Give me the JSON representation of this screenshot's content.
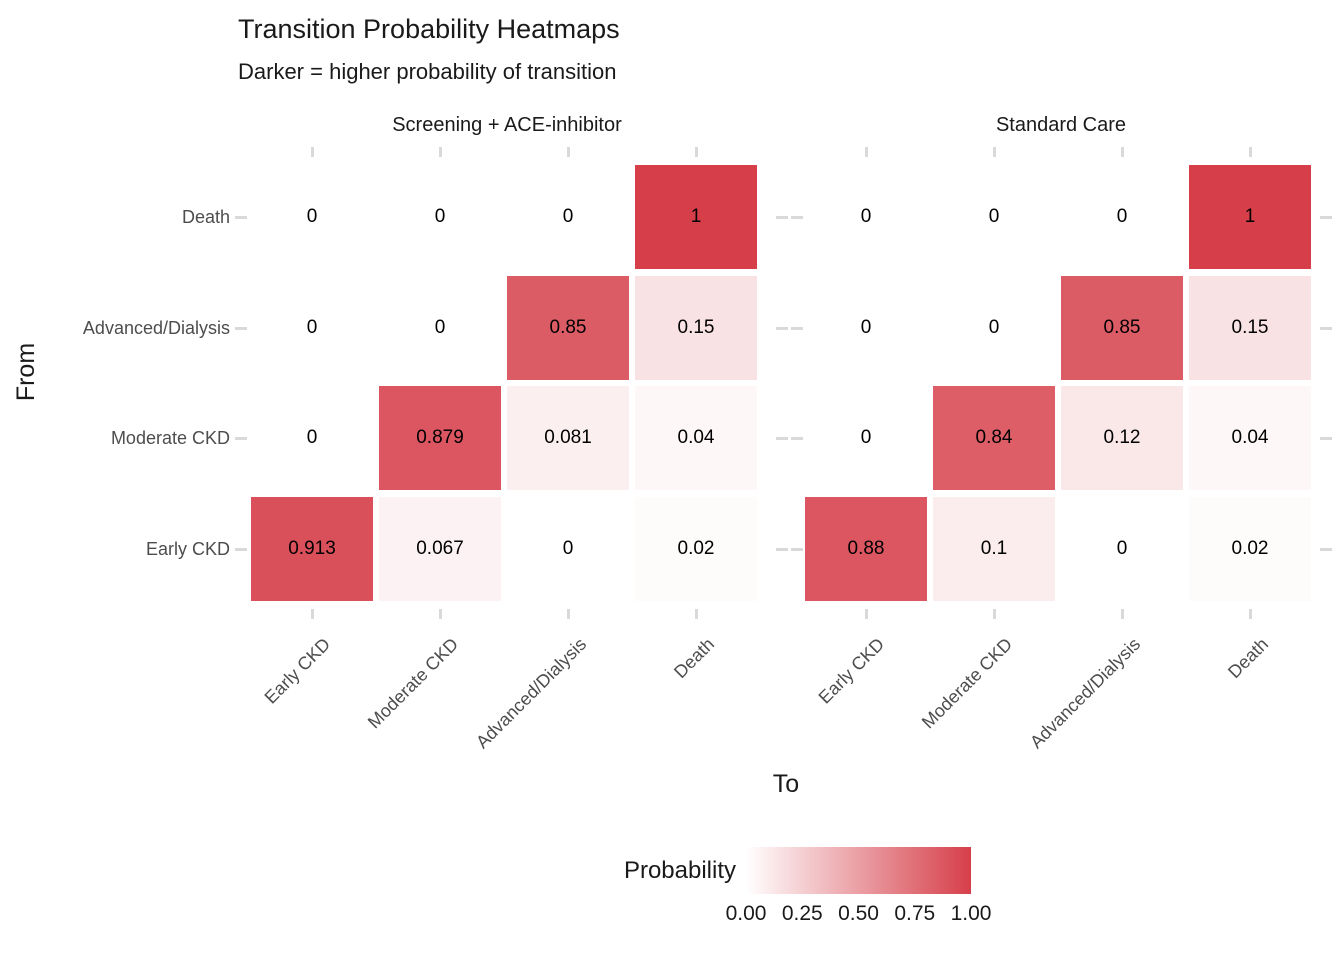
{
  "chart_data": {
    "type": "heatmap",
    "title": "Transition Probability Heatmaps",
    "subtitle": "Darker = higher probability of transition",
    "xlabel": "To",
    "ylabel": "From",
    "row_axis_labels": [
      "Death",
      "Advanced/Dialysis",
      "Moderate CKD",
      "Early CKD"
    ],
    "col_axis_labels": [
      "Early CKD",
      "Moderate CKD",
      "Advanced/Dialysis",
      "Death"
    ],
    "facets": [
      {
        "label": "Screening + ACE-inhibitor",
        "values": [
          [
            0,
            0,
            0,
            1
          ],
          [
            0,
            0,
            0.85,
            0.15
          ],
          [
            0,
            0.879,
            0.081,
            0.04
          ],
          [
            0.913,
            0.067,
            0,
            0.02
          ]
        ],
        "cell_labels": [
          [
            "0",
            "0",
            "0",
            "1"
          ],
          [
            "0",
            "0",
            "0.85",
            "0.15"
          ],
          [
            "0",
            "0.879",
            "0.081",
            "0.04"
          ],
          [
            "0.913",
            "0.067",
            "0",
            "0.02"
          ]
        ]
      },
      {
        "label": "Standard Care",
        "values": [
          [
            0,
            0,
            0,
            1
          ],
          [
            0,
            0,
            0.85,
            0.15
          ],
          [
            0,
            0.84,
            0.12,
            0.04
          ],
          [
            0.88,
            0.1,
            0,
            0.02
          ]
        ],
        "cell_labels": [
          [
            "0",
            "0",
            "0",
            "1"
          ],
          [
            "0",
            "0",
            "0.85",
            "0.15"
          ],
          [
            "0",
            "0.84",
            "0.12",
            "0.04"
          ],
          [
            "0.88",
            "0.1",
            "0",
            "0.02"
          ]
        ]
      }
    ],
    "legend": {
      "title": "Probability",
      "tick_labels": [
        "0.00",
        "0.25",
        "0.50",
        "0.75",
        "1.00"
      ],
      "min": 0,
      "max": 1,
      "position": "bottom"
    },
    "value_range": [
      0,
      1
    ],
    "colors": {
      "low": "#FFFFFF",
      "high": "#D63F4A",
      "axis_text": "#4D4D4D",
      "title_text": "#1A1A1A",
      "grid_stub": "#D9D9D9"
    }
  }
}
